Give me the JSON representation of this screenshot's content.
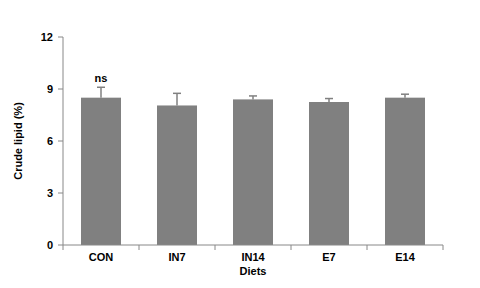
{
  "chart_data": {
    "type": "bar",
    "x_label": "Diets",
    "y_label": "Crude lipid (%)",
    "categories": [
      "CON",
      "IN7",
      "IN14",
      "E7",
      "E14"
    ],
    "values": [
      8.5,
      8.05,
      8.4,
      8.25,
      8.5
    ],
    "errors": [
      0.6,
      0.7,
      0.2,
      0.2,
      0.2
    ],
    "color": "#808080",
    "ylim": [
      0,
      12
    ],
    "yticks": [
      0,
      3,
      6,
      9,
      12
    ],
    "grid": false,
    "annotations": [
      {
        "category": "CON",
        "text": "ns"
      }
    ]
  }
}
